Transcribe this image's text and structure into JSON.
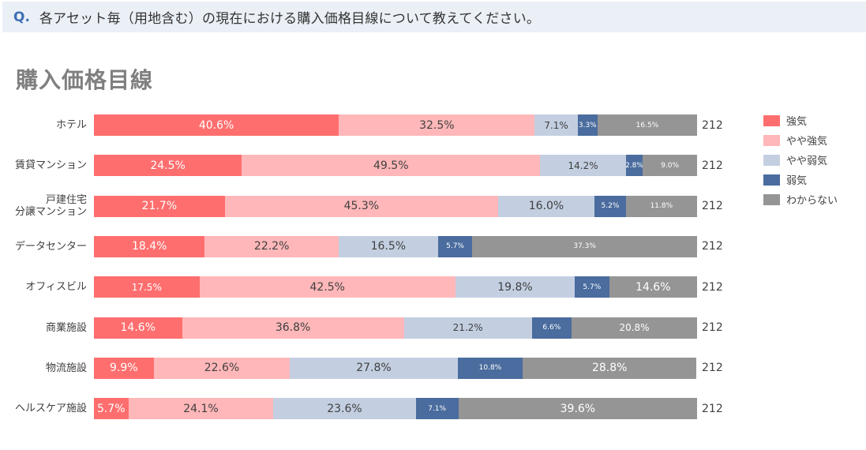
{
  "question": {
    "marker": "Q.",
    "text": "各アセット毎（用地含む）の現在における購入価格目線について教えてください。"
  },
  "chart_data": {
    "type": "bar",
    "orientation": "horizontal",
    "stacked": "100%",
    "title": "購入価格目線",
    "xlabel": "",
    "ylabel": "",
    "categories": [
      "ホテル",
      "賃貸マンション",
      "戸建住宅\n分譲マンション",
      "データセンター",
      "オフィスビル",
      "商業施設",
      "物流施設",
      "ヘルスケア施設"
    ],
    "series": [
      {
        "name": "強気",
        "color": "#ff6e6e",
        "values": [
          40.6,
          24.5,
          21.7,
          18.4,
          17.5,
          14.6,
          9.9,
          5.7
        ]
      },
      {
        "name": "やや強気",
        "color": "#ffb7b9",
        "values": [
          32.5,
          49.5,
          45.3,
          22.2,
          42.5,
          36.8,
          22.6,
          24.1
        ]
      },
      {
        "name": "やや弱気",
        "color": "#c3cfe1",
        "values": [
          7.1,
          14.2,
          16.0,
          16.5,
          19.8,
          21.2,
          27.8,
          23.6
        ]
      },
      {
        "name": "弱気",
        "color": "#4a6c9e",
        "values": [
          3.3,
          2.8,
          5.2,
          5.7,
          5.7,
          6.6,
          10.8,
          7.1
        ]
      },
      {
        "name": "わからない",
        "color": "#959595",
        "values": [
          16.5,
          9.0,
          11.8,
          37.3,
          14.6,
          20.8,
          28.8,
          39.6
        ]
      }
    ],
    "n": [
      212,
      212,
      212,
      212,
      212,
      212,
      212,
      212
    ],
    "grid": false,
    "legend_position": "right",
    "xlim": [
      0,
      100
    ]
  },
  "rows": [
    {
      "label": "ホテル",
      "n": "212",
      "segs": [
        {
          "pct": 40.6,
          "text": "40.6%",
          "fs": "l"
        },
        {
          "pct": 32.5,
          "text": "32.5%",
          "fs": "l"
        },
        {
          "pct": 7.1,
          "text": "7.1%",
          "fs": "m"
        },
        {
          "pct": 3.3,
          "text": "3.3%",
          "fs": "s"
        },
        {
          "pct": 16.5,
          "text": "16.5%",
          "fs": "s"
        }
      ]
    },
    {
      "label": "賃貸マンション",
      "n": "212",
      "segs": [
        {
          "pct": 24.5,
          "text": "24.5%",
          "fs": "l"
        },
        {
          "pct": 49.5,
          "text": "49.5%",
          "fs": "l"
        },
        {
          "pct": 14.2,
          "text": "14.2%",
          "fs": "m"
        },
        {
          "pct": 2.8,
          "text": "2.8%",
          "fs": "s"
        },
        {
          "pct": 9.0,
          "text": "9.0%",
          "fs": "s"
        }
      ]
    },
    {
      "label": "戸建住宅\n分譲マンション",
      "n": "212",
      "segs": [
        {
          "pct": 21.7,
          "text": "21.7%",
          "fs": "l"
        },
        {
          "pct": 45.3,
          "text": "45.3%",
          "fs": "l"
        },
        {
          "pct": 16.0,
          "text": "16.0%",
          "fs": "l"
        },
        {
          "pct": 5.2,
          "text": "5.2%",
          "fs": "s"
        },
        {
          "pct": 11.8,
          "text": "11.8%",
          "fs": "s"
        }
      ]
    },
    {
      "label": "データセンター",
      "n": "212",
      "segs": [
        {
          "pct": 18.4,
          "text": "18.4%",
          "fs": "l"
        },
        {
          "pct": 22.2,
          "text": "22.2%",
          "fs": "l"
        },
        {
          "pct": 16.5,
          "text": "16.5%",
          "fs": "l"
        },
        {
          "pct": 5.7,
          "text": "5.7%",
          "fs": "s"
        },
        {
          "pct": 37.3,
          "text": "37.3%",
          "fs": "s"
        }
      ]
    },
    {
      "label": "オフィスビル",
      "n": "212",
      "segs": [
        {
          "pct": 17.5,
          "text": "17.5%",
          "fs": "m"
        },
        {
          "pct": 42.5,
          "text": "42.5%",
          "fs": "l"
        },
        {
          "pct": 19.8,
          "text": "19.8%",
          "fs": "l"
        },
        {
          "pct": 5.7,
          "text": "5.7%",
          "fs": "s"
        },
        {
          "pct": 14.6,
          "text": "14.6%",
          "fs": "l"
        }
      ]
    },
    {
      "label": "商業施設",
      "n": "212",
      "segs": [
        {
          "pct": 14.6,
          "text": "14.6%",
          "fs": "l"
        },
        {
          "pct": 36.8,
          "text": "36.8%",
          "fs": "l"
        },
        {
          "pct": 21.2,
          "text": "21.2%",
          "fs": "m"
        },
        {
          "pct": 6.6,
          "text": "6.6%",
          "fs": "s"
        },
        {
          "pct": 20.8,
          "text": "20.8%",
          "fs": "m"
        }
      ]
    },
    {
      "label": "物流施設",
      "n": "212",
      "segs": [
        {
          "pct": 9.9,
          "text": "9.9%",
          "fs": "l"
        },
        {
          "pct": 22.6,
          "text": "22.6%",
          "fs": "l"
        },
        {
          "pct": 27.8,
          "text": "27.8%",
          "fs": "l"
        },
        {
          "pct": 10.8,
          "text": "10.8%",
          "fs": "s"
        },
        {
          "pct": 28.8,
          "text": "28.8%",
          "fs": "l"
        }
      ]
    },
    {
      "label": "ヘルスケア施設",
      "n": "212",
      "segs": [
        {
          "pct": 5.7,
          "text": "5.7%",
          "fs": "l"
        },
        {
          "pct": 24.1,
          "text": "24.1%",
          "fs": "l"
        },
        {
          "pct": 23.6,
          "text": "23.6%",
          "fs": "l"
        },
        {
          "pct": 7.1,
          "text": "7.1%",
          "fs": "s"
        },
        {
          "pct": 39.6,
          "text": "39.6%",
          "fs": "l"
        }
      ]
    }
  ],
  "legend": [
    {
      "label": "強気",
      "color": "#ff6e6e"
    },
    {
      "label": "やや強気",
      "color": "#ffb7b9"
    },
    {
      "label": "やや弱気",
      "color": "#c3cfe1"
    },
    {
      "label": "弱気",
      "color": "#4a6c9e"
    },
    {
      "label": "わからない",
      "color": "#959595"
    }
  ]
}
